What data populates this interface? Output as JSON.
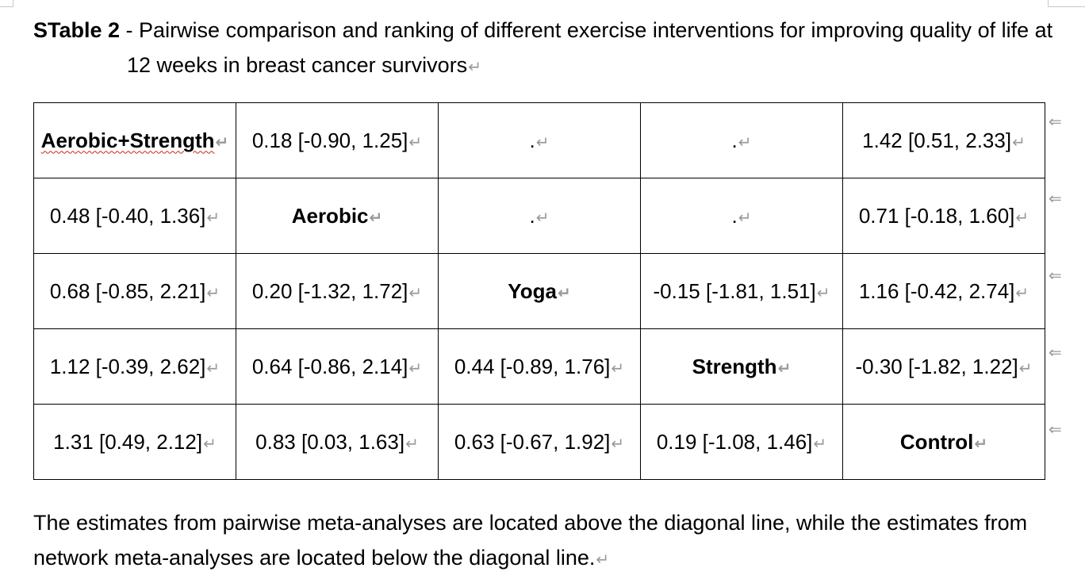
{
  "caption": {
    "label": "STable 2",
    "text": " - Pairwise comparison and ranking of different exercise interventions for improving quality of life at 12 weeks in breast cancer survivors"
  },
  "matrix": {
    "rows": [
      [
        "Aerobic+Strength",
        "0.18 [-0.90, 1.25]",
        ".",
        ".",
        "1.42 [0.51, 2.33]"
      ],
      [
        "0.48 [-0.40, 1.36]",
        "Aerobic",
        ".",
        ".",
        "0.71 [-0.18, 1.60]"
      ],
      [
        "0.68 [-0.85, 2.21]",
        "0.20 [-1.32, 1.72]",
        "Yoga",
        "-0.15 [-1.81, 1.51]",
        "1.16 [-0.42, 2.74]"
      ],
      [
        "1.12 [-0.39, 2.62]",
        "0.64 [-0.86, 2.14]",
        "0.44 [-0.89, 1.76]",
        "Strength",
        "-0.30 [-1.82, 1.22]"
      ],
      [
        "1.31 [0.49, 2.12]",
        "0.83 [0.03, 1.63]",
        "0.63 [-0.67, 1.92]",
        "0.19 [-1.08, 1.46]",
        "Control"
      ]
    ]
  },
  "paragraph_mark": "↵",
  "row_end_mark": "⇐",
  "note": "The estimates from pairwise meta-analyses are located above the diagonal line, while the estimates from network meta-analyses are located below the diagonal line."
}
